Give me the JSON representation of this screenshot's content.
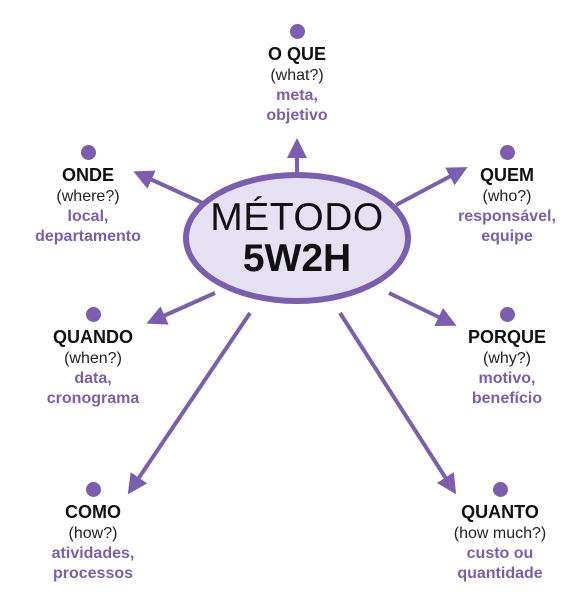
{
  "center": {
    "line1": "MÉTODO",
    "line2": "5W2H"
  },
  "nodes": [
    {
      "id": "oque",
      "title": "O QUE",
      "sub": "(what?)",
      "desc1": "meta,",
      "desc2": "objetivo"
    },
    {
      "id": "onde",
      "title": "ONDE",
      "sub": "(where?)",
      "desc1": "local,",
      "desc2": "departamento"
    },
    {
      "id": "quem",
      "title": "QUEM",
      "sub": "(who?)",
      "desc1": "responsável,",
      "desc2": "equipe"
    },
    {
      "id": "quando",
      "title": "QUANDO",
      "sub": "(when?)",
      "desc1": "data,",
      "desc2": "cronograma"
    },
    {
      "id": "porque",
      "title": "PORQUE",
      "sub": "(why?)",
      "desc1": "motivo,",
      "desc2": "benefício"
    },
    {
      "id": "como",
      "title": "COMO",
      "sub": "(how?)",
      "desc1": "atividades,",
      "desc2": "processos"
    },
    {
      "id": "quanto",
      "title": "QUANTO",
      "sub": "(how much?)",
      "desc1": "custo ou",
      "desc2": "quantidade"
    }
  ],
  "colors": {
    "accent": "#7b5eb0",
    "center_fill": "#e6e1f2",
    "text": "#111111"
  }
}
